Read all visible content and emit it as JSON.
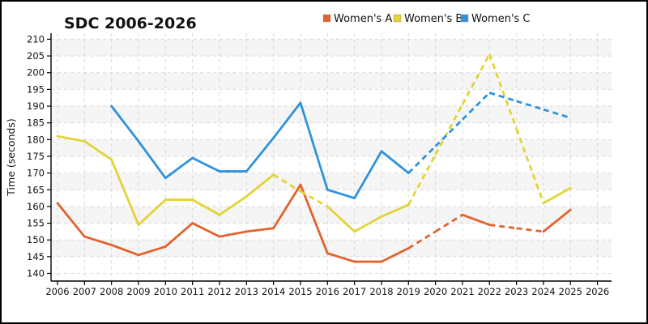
{
  "window_title": "SDC 2006-2026 chart",
  "chart_data": {
    "type": "line",
    "title": "SDC 2006-2026",
    "xlabel": "",
    "ylabel": "Time (seconds)",
    "x_ticks": [
      2006,
      2007,
      2008,
      2009,
      2010,
      2011,
      2012,
      2013,
      2014,
      2015,
      2016,
      2017,
      2018,
      2019,
      2020,
      2021,
      2022,
      2023,
      2024,
      2025,
      2026
    ],
    "y_ticks": [
      140,
      145,
      150,
      155,
      160,
      165,
      170,
      175,
      180,
      185,
      190,
      195,
      200,
      205,
      210
    ],
    "ylim": [
      137.7,
      211.8
    ],
    "xlim": [
      2005.76,
      2026.5
    ],
    "grid": {
      "style": "dashed",
      "line_color": "#d9d9d9",
      "band_color": "#f5f5f5",
      "bands": "alternating 5-unit horizontal rows"
    },
    "legend": {
      "position": "top-right",
      "entries": [
        "Women's A",
        "Women's B",
        "Women's C"
      ]
    },
    "series": [
      {
        "name": "Women's A",
        "color": "#e2622e",
        "x": [
          2006,
          2007,
          2008,
          2009,
          2010,
          2011,
          2012,
          2013,
          2014,
          2015,
          2016,
          2017,
          2018,
          2019,
          2020,
          2021,
          2022,
          2023,
          2024,
          2025
        ],
        "values": [
          161,
          151,
          148.5,
          145.5,
          148,
          155,
          151,
          152.5,
          153.5,
          166.5,
          146,
          143.5,
          143.5,
          147.5,
          152.5,
          157.5,
          154.5,
          153.5,
          152.5,
          159
        ],
        "dashed_segments": [
          [
            2019,
            2021
          ],
          [
            2022,
            2024
          ]
        ]
      },
      {
        "name": "Women's B",
        "color": "#e3d334",
        "x": [
          2006,
          2007,
          2008,
          2009,
          2010,
          2011,
          2012,
          2013,
          2014,
          2015,
          2016,
          2017,
          2018,
          2019,
          2020,
          2021,
          2022,
          2023,
          2024,
          2025
        ],
        "values": [
          181,
          179.5,
          174,
          154.5,
          162,
          162,
          157.5,
          163,
          169.5,
          164.5,
          160,
          152.5,
          157,
          160.5,
          175.5,
          190.5,
          205.5,
          183.25,
          161,
          165.5
        ],
        "dashed_segments": [
          [
            2014,
            2016
          ],
          [
            2019,
            2024
          ]
        ]
      },
      {
        "name": "Women's C",
        "color": "#2f93db",
        "x": [
          2008,
          2009,
          2010,
          2011,
          2012,
          2013,
          2014,
          2015,
          2016,
          2017,
          2018,
          2019,
          2020,
          2021,
          2022,
          2023,
          2024,
          2025
        ],
        "values": [
          190,
          179.5,
          168.5,
          174.5,
          170.5,
          170.5,
          180.5,
          191,
          165,
          162.5,
          176.5,
          170,
          178,
          186,
          194,
          191.5,
          189,
          186.5
        ],
        "dashed_segments": [
          [
            2019,
            2025
          ]
        ]
      }
    ]
  }
}
